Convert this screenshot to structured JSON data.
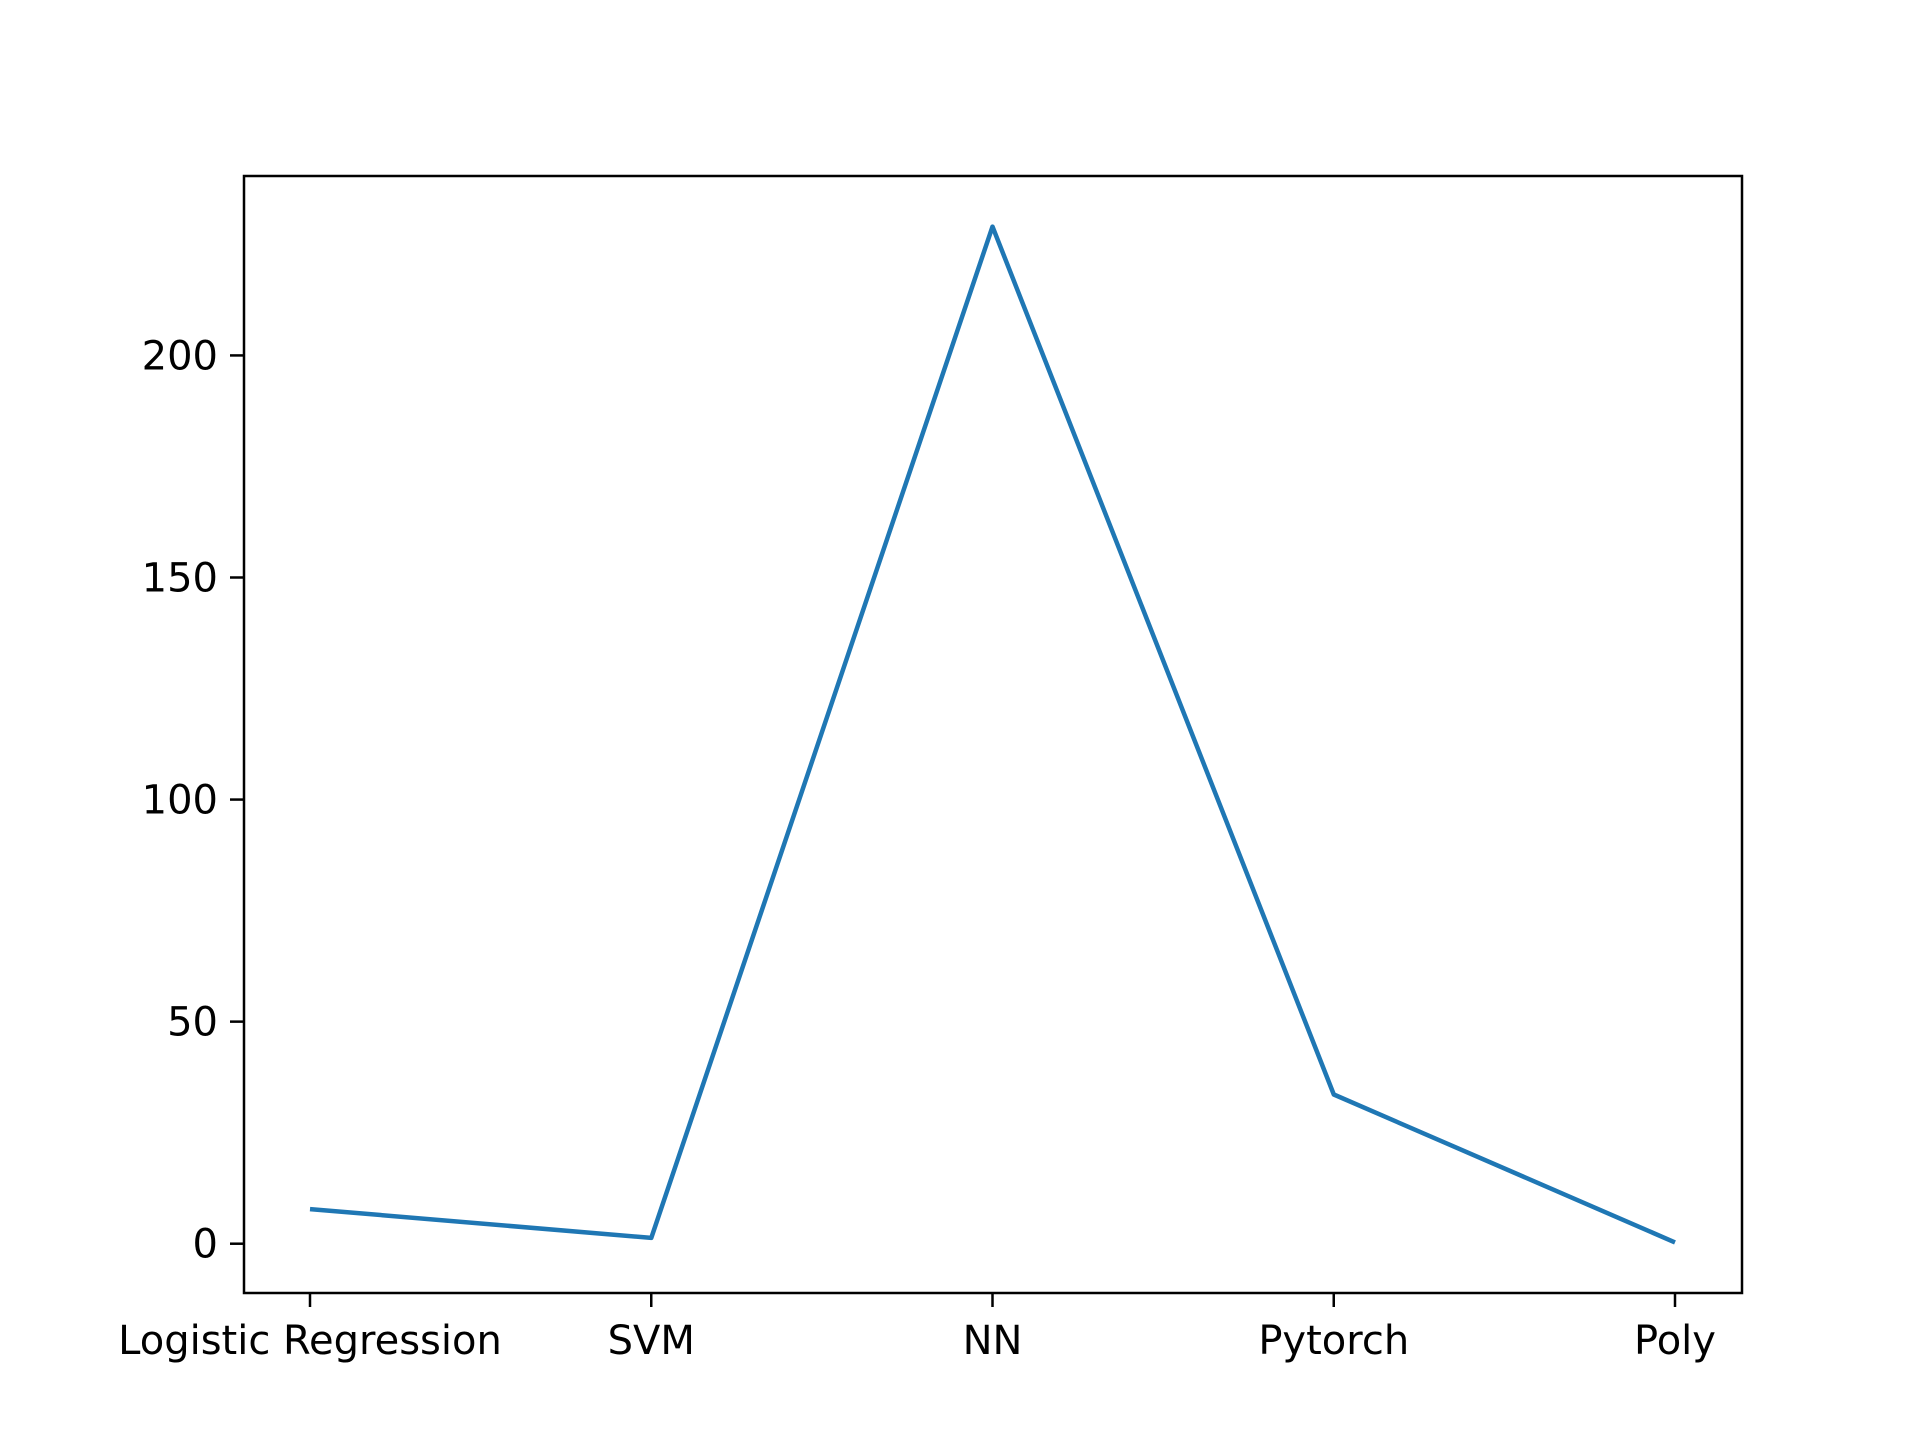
{
  "chart_data": {
    "type": "line",
    "categories": [
      "Logistic Regression",
      "SVM",
      "NN",
      "Pytorch",
      "Poly"
    ],
    "series": [
      {
        "values": [
          7.8,
          1.3,
          229.0,
          33.6,
          0.3
        ],
        "color": "#1f77b4"
      }
    ],
    "title": "",
    "xlabel": "",
    "ylabel": "",
    "ylim": [
      -11.1,
      240.4
    ],
    "yticks": [
      0,
      50,
      100,
      150,
      200
    ],
    "ytick_labels": [
      "0",
      "50",
      "100",
      "150",
      "200"
    ],
    "grid": false,
    "legend": "none"
  }
}
